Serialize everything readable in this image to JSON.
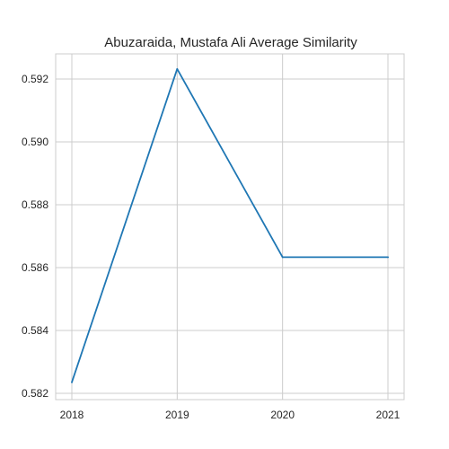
{
  "chart_data": {
    "type": "line",
    "title": "Abuzaraida, Mustafa Ali Average Similarity",
    "xlabel": "",
    "ylabel": "",
    "x": [
      "2018",
      "2019",
      "2020",
      "2021"
    ],
    "series": [
      {
        "values": [
          0.58235,
          0.59232,
          0.58633,
          0.58633
        ],
        "color": "#1f77b4"
      }
    ],
    "yticks": [
      "0.582",
      "0.584",
      "0.586",
      "0.588",
      "0.590",
      "0.592"
    ],
    "ylim": [
      0.5818,
      0.5928
    ],
    "grid": true
  }
}
